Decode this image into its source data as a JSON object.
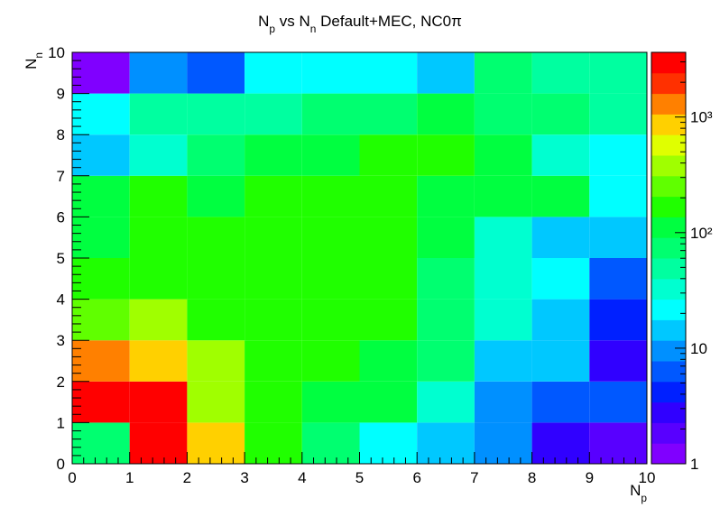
{
  "chart_data": {
    "type": "heatmap",
    "title": [
      {
        "text": "N"
      },
      {
        "text": "p",
        "sub": true
      },
      {
        "text": " vs N"
      },
      {
        "text": "n",
        "sub": true
      },
      {
        "text": " Default+MEC, NC0π"
      }
    ],
    "x_label": [
      {
        "text": "N"
      },
      {
        "text": "p",
        "sub": true
      }
    ],
    "y_label": [
      {
        "text": "N"
      },
      {
        "text": "n",
        "sub": true
      }
    ],
    "xbins": [
      0,
      1,
      2,
      3,
      4,
      5,
      6,
      7,
      8,
      9,
      10
    ],
    "ybins": [
      0,
      1,
      2,
      3,
      4,
      5,
      6,
      7,
      8,
      9,
      10
    ],
    "xlim": [
      0,
      10
    ],
    "ylim": [
      0,
      10
    ],
    "xticks": [
      0,
      1,
      2,
      3,
      4,
      5,
      6,
      7,
      8,
      9,
      10
    ],
    "yticks": [
      0,
      1,
      2,
      3,
      4,
      5,
      6,
      7,
      8,
      9,
      10
    ],
    "z": [
      [
        75,
        3000,
        800,
        170,
        75,
        22,
        15,
        10,
        2.8,
        1.9
      ],
      [
        3000,
        3000,
        400,
        170,
        110,
        110,
        32,
        10,
        6.5,
        6.5
      ],
      [
        1300,
        800,
        400,
        170,
        170,
        110,
        75,
        15,
        15,
        2.8
      ],
      [
        250,
        400,
        170,
        170,
        170,
        170,
        75,
        32,
        15,
        4
      ],
      [
        170,
        170,
        170,
        170,
        170,
        170,
        75,
        32,
        22,
        6.5
      ],
      [
        110,
        170,
        170,
        170,
        170,
        170,
        110,
        32,
        15,
        15
      ],
      [
        110,
        170,
        110,
        170,
        170,
        170,
        110,
        110,
        110,
        22
      ],
      [
        15,
        32,
        75,
        110,
        110,
        170,
        170,
        110,
        32,
        22
      ],
      [
        22,
        50,
        50,
        50,
        75,
        75,
        110,
        75,
        75,
        50
      ],
      [
        1.2,
        10,
        6.5,
        22,
        22,
        22,
        15,
        75,
        50,
        50
      ]
    ],
    "zlim": [
      1,
      3630
    ],
    "zlog": true,
    "zticks": [
      1,
      10,
      {
        "value": 100,
        "label": "10²"
      },
      {
        "value": 1000,
        "label": "10³"
      }
    ],
    "palette": [
      "#8000ff",
      "#5800ff",
      "#3000ff",
      "#0020ff",
      "#0058ff",
      "#0090ff",
      "#00c8ff",
      "#00ffff",
      "#00ffd0",
      "#00ffa0",
      "#00ff70",
      "#00ff40",
      "#20ff00",
      "#60ff00",
      "#a0ff00",
      "#e0ff00",
      "#ffd000",
      "#ff8000",
      "#ff3000",
      "#ff0000"
    ]
  }
}
